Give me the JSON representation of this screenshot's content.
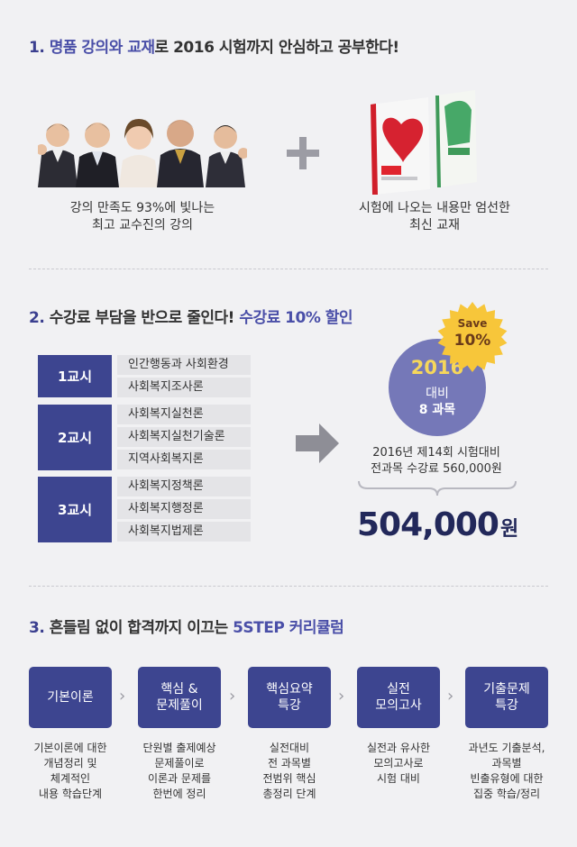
{
  "section1": {
    "number": "1.",
    "title_a": " 명품 강의와 교재",
    "title_b": "로 2016 시험까지 안심하고 공부한다!",
    "caption_left": [
      "강의 만족도 93%에 빛나는",
      "최고 교수진의 강의"
    ],
    "caption_right": [
      "시험에 나오는 내용만 엄선한",
      "최신 교재"
    ],
    "icons": [
      "instructors-photo",
      "plus-icon",
      "textbooks-photo"
    ]
  },
  "section2": {
    "number": "2.",
    "title_a": " 수강료 부담을 반으로 줄인다! ",
    "title_b": "수강료 10% 할인",
    "periods": [
      {
        "label": "1교시",
        "subjects": [
          "인간행동과 사회환경",
          "사회복지조사론"
        ]
      },
      {
        "label": "2교시",
        "subjects": [
          "사회복지실천론",
          "사회복지실천기술론",
          "지역사회복지론"
        ]
      },
      {
        "label": "3교시",
        "subjects": [
          "사회복지정책론",
          "사회복지행정론",
          "사회복지법제론"
        ]
      }
    ],
    "circle": {
      "year": "2016",
      "line2": "대비",
      "line3": "8 과목"
    },
    "badge": {
      "line1": "Save",
      "line2": "10%"
    },
    "price_info": [
      "2016년 제14회 시험대비",
      "전과목 수강료  560,000원"
    ],
    "price": "504,000",
    "price_unit": "원",
    "colors": {
      "navy": "#3d4590",
      "circle": "#7578b8",
      "badge": "#f7c63a"
    }
  },
  "section3": {
    "number": "3.",
    "title_a": " 흔들림 없이 합격까지 이끄는 ",
    "title_b": "5STEP 커리큘럼",
    "steps": [
      {
        "label": "기본이론",
        "desc": "기본이론에 대한\n개념정리 및\n체계적인\n내용 학습단계"
      },
      {
        "label": "핵심 &\n문제풀이",
        "desc": "단원별 출제예상\n문제풀이로\n이론과 문제를\n한번에 정리"
      },
      {
        "label": "핵심요약\n특강",
        "desc": "실전대비\n전 과목별\n전범위 핵심\n총정리 단계"
      },
      {
        "label": "실전\n모의고사",
        "desc": "실전과 유사한\n모의고사로\n시험 대비"
      },
      {
        "label": "기출문제\n특강",
        "desc": "과년도 기출분석,\n과목별\n빈출유형에 대한\n집중 학습/정리"
      }
    ],
    "chevron": "›"
  }
}
